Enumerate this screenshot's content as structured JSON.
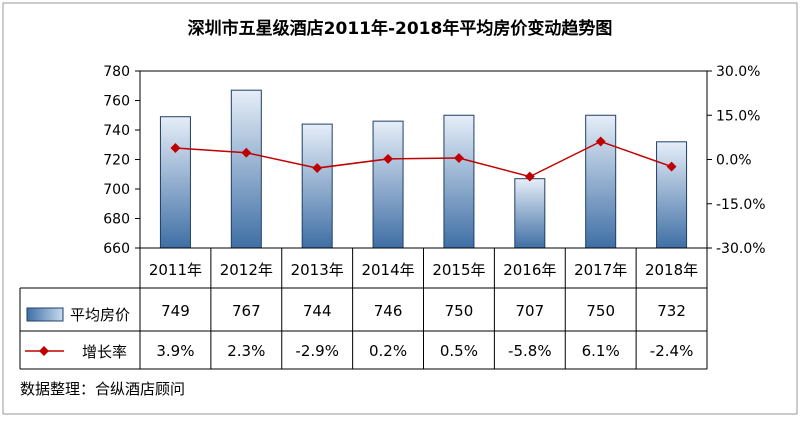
{
  "chart_data": {
    "type": "bar",
    "title": "深圳市五星级酒店2011年-2018年平均房价变动趋势图",
    "categories": [
      "2011年",
      "2012年",
      "2013年",
      "2014年",
      "2015年",
      "2016年",
      "2017年",
      "2018年"
    ],
    "series": [
      {
        "name": "平均房价",
        "type": "bar",
        "axis": "left",
        "values": [
          749,
          767,
          744,
          746,
          750,
          707,
          750,
          732
        ],
        "labels": [
          "749",
          "767",
          "744",
          "746",
          "750",
          "707",
          "750",
          "732"
        ]
      },
      {
        "name": "增长率",
        "type": "line",
        "axis": "right",
        "values": [
          3.9,
          2.3,
          -2.9,
          0.2,
          0.5,
          -5.8,
          6.1,
          -2.4
        ],
        "labels": [
          "3.9%",
          "2.3%",
          "-2.9%",
          "0.2%",
          "0.5%",
          "-5.8%",
          "6.1%",
          "-2.4%"
        ]
      }
    ],
    "y_left": {
      "min": 660,
      "max": 780,
      "ticks": [
        "780",
        "760",
        "740",
        "720",
        "700",
        "680",
        "660"
      ]
    },
    "y_right": {
      "min": -30,
      "max": 30,
      "ticks": [
        "30.0%",
        "15.0%",
        "0.0%",
        "-15.0%",
        "-30.0%"
      ]
    },
    "grid": false,
    "legend": "data-table-left",
    "source_note": "数据整理：合纵酒店顾问",
    "colors": {
      "bar_top": "#3f6fa5",
      "bar_bottom": "#e6eef8",
      "line": "#c00000"
    }
  }
}
